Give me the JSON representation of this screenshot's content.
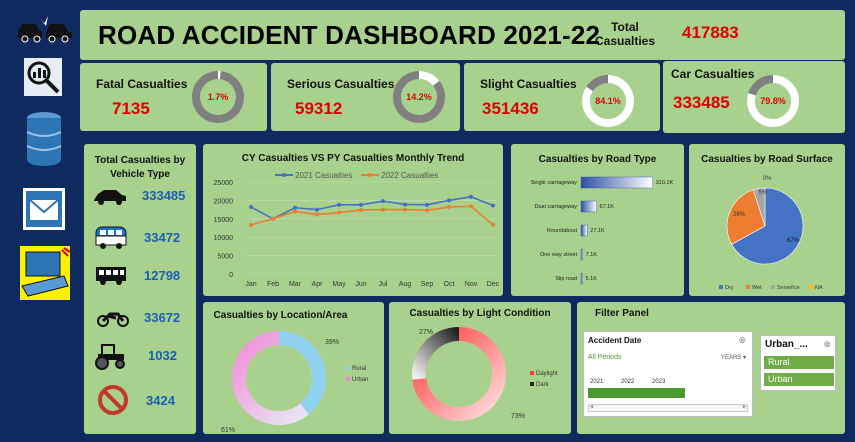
{
  "title": "ROAD ACCIDENT DASHBOARD 2021-22",
  "total": {
    "label": "Total Casualties",
    "value": "417883"
  },
  "kpis": [
    {
      "label": "Fatal Casualties",
      "value": "7135",
      "pct": "1.7%",
      "fraction": 0.017
    },
    {
      "label": "Serious Casualties",
      "value": "59312",
      "pct": "14.2%",
      "fraction": 0.142
    },
    {
      "label": "Slight Casualties",
      "value": "351436",
      "pct": "84.1%",
      "fraction": 0.841
    },
    {
      "label": "Car Casualties",
      "value": "333485",
      "pct": "79.8%",
      "fraction": 0.798
    }
  ],
  "sidebar": {
    "icons": [
      "car-crash-icon",
      "search-analytics-icon",
      "database-icon",
      "mail-icon",
      "laptop-icon"
    ]
  },
  "vehicles": {
    "title": "Total Casualties by Vehicle Type",
    "items": [
      {
        "icon": "car-icon",
        "value": "333485"
      },
      {
        "icon": "van-icon",
        "value": "33472"
      },
      {
        "icon": "bus-icon",
        "value": "12798"
      },
      {
        "icon": "motorcycle-icon",
        "value": "33672"
      },
      {
        "icon": "tractor-icon",
        "value": "1032"
      },
      {
        "icon": "no-entry-icon",
        "value": "3424"
      }
    ]
  },
  "colors": {
    "accent_red": "#e00000",
    "panel_green": "#a9d18e",
    "background_navy": "#0e2a5e",
    "value_blue": "#1a5fb4"
  },
  "trend": {
    "chart_data": {
      "type": "line",
      "title": "CY Casualties VS PY Casualties Monthly Trend",
      "categories": [
        "Jan",
        "Feb",
        "Mar",
        "Apr",
        "May",
        "Jun",
        "Jul",
        "Aug",
        "Sep",
        "Oct",
        "Nov",
        "Dec"
      ],
      "series": [
        {
          "name": "2021 Casualties",
          "color": "#4472c4",
          "values": [
            18200,
            15000,
            18000,
            17500,
            18800,
            18800,
            19800,
            18900,
            18800,
            20000,
            21000,
            18600
          ]
        },
        {
          "name": "2022 Casualties",
          "color": "#ed7d31",
          "values": [
            13300,
            15000,
            17000,
            16200,
            16700,
            17400,
            17500,
            17500,
            17300,
            18200,
            18400,
            13400
          ]
        }
      ],
      "ylim": [
        0,
        25000
      ],
      "yticks": [
        "0",
        "5000",
        "10000",
        "15000",
        "20000",
        "25000"
      ],
      "legend": "top",
      "grid": true
    }
  },
  "road_type": {
    "chart_data": {
      "type": "bar",
      "title": "Casualties by Road Type",
      "categories": [
        "Single carriageway",
        "Dual carriageway",
        "Roundabout",
        "One way street",
        "Slip road"
      ],
      "values": [
        310.1,
        67.1,
        27.1,
        7.1,
        5.1
      ],
      "labels": [
        "310.1K",
        "67.1K",
        "27.1K",
        "7.1K",
        "5.1K"
      ],
      "xlim": [
        0,
        320
      ]
    }
  },
  "road_surface": {
    "chart_data": {
      "type": "pie",
      "title": "Casualties by Road Surface",
      "categories": [
        "Dry",
        "Wet",
        "Snow/Ice",
        "NA"
      ],
      "values": [
        67,
        28,
        5,
        0
      ],
      "labels": [
        "67%",
        "28%",
        "5%",
        "0%"
      ],
      "colors": [
        "#4472c4",
        "#ed7d31",
        "#a5a5a5",
        "#ffc000"
      ],
      "legend": "bottom"
    }
  },
  "location": {
    "chart_data": {
      "type": "pie",
      "title": "Casualties by Location/Area",
      "categories": [
        "Rural",
        "Urban"
      ],
      "values": [
        39,
        61
      ],
      "labels": [
        "39%",
        "61%"
      ],
      "legend": "right"
    }
  },
  "light": {
    "chart_data": {
      "type": "pie",
      "title": "Casualties by Light Condition",
      "categories": [
        "Daylight",
        "Dark"
      ],
      "values": [
        73,
        27
      ],
      "labels": [
        "73%",
        "27%"
      ],
      "legend": "right"
    }
  },
  "filter": {
    "title": "Filter Panel",
    "timeline": {
      "title": "Accident Date",
      "period": "All Periods",
      "unit": "YEARS",
      "years": [
        "2021",
        "2022",
        "2023"
      ]
    },
    "urban_slicer": {
      "title": "Urban_...",
      "options": [
        "Rural",
        "Urban"
      ]
    }
  }
}
